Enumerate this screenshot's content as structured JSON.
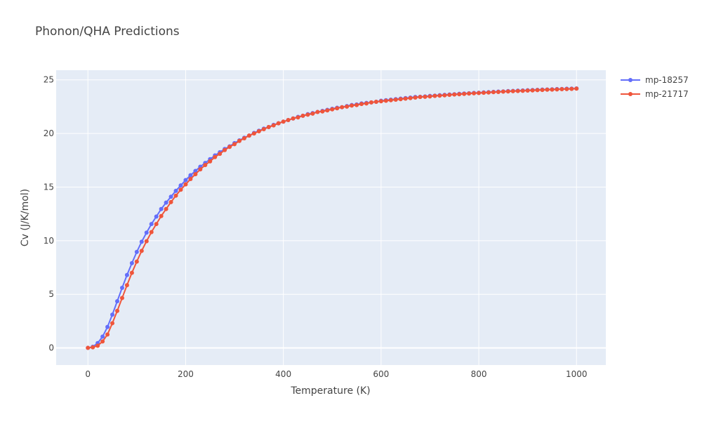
{
  "chart_data": {
    "type": "line",
    "title": "Phonon/QHA Predictions",
    "xlabel": "Temperature (K)",
    "ylabel": "Cv (J/K/mol)",
    "xlim": [
      -65,
      1060
    ],
    "ylim": [
      -1.6,
      25.9
    ],
    "xticks": [
      0,
      200,
      400,
      600,
      800,
      1000
    ],
    "yticks": [
      0,
      5,
      10,
      15,
      20,
      25
    ],
    "grid": true,
    "legend_position": "top-right-outside",
    "x": [
      0,
      10,
      20,
      30,
      40,
      50,
      60,
      70,
      80,
      90,
      100,
      110,
      120,
      130,
      140,
      150,
      160,
      170,
      180,
      190,
      200,
      210,
      220,
      230,
      240,
      250,
      260,
      270,
      280,
      290,
      300,
      310,
      320,
      330,
      340,
      350,
      360,
      370,
      380,
      390,
      400,
      410,
      420,
      430,
      440,
      450,
      460,
      470,
      480,
      490,
      500,
      510,
      520,
      530,
      540,
      550,
      560,
      570,
      580,
      590,
      600,
      610,
      620,
      630,
      640,
      650,
      660,
      670,
      680,
      690,
      700,
      710,
      720,
      730,
      740,
      750,
      760,
      770,
      780,
      790,
      800,
      810,
      820,
      830,
      840,
      850,
      860,
      870,
      880,
      890,
      900,
      910,
      920,
      930,
      940,
      950,
      960,
      970,
      980,
      990,
      1000
    ],
    "series": [
      {
        "name": "mp-18257",
        "color": "#636efa",
        "values": [
          0,
          0.1,
          0.45,
          1.05,
          1.95,
          3.1,
          4.35,
          5.6,
          6.8,
          7.9,
          8.95,
          9.9,
          10.75,
          11.55,
          12.25,
          12.95,
          13.55,
          14.1,
          14.65,
          15.15,
          15.65,
          16.1,
          16.5,
          16.9,
          17.25,
          17.6,
          17.95,
          18.25,
          18.55,
          18.8,
          19.1,
          19.35,
          19.6,
          19.8,
          20.05,
          20.25,
          20.45,
          20.6,
          20.8,
          20.95,
          21.1,
          21.25,
          21.4,
          21.55,
          21.65,
          21.8,
          21.9,
          22.0,
          22.1,
          22.2,
          22.3,
          22.4,
          22.45,
          22.55,
          22.65,
          22.7,
          22.8,
          22.85,
          22.9,
          22.95,
          23.05,
          23.1,
          23.15,
          23.2,
          23.25,
          23.3,
          23.35,
          23.4,
          23.42,
          23.45,
          23.5,
          23.53,
          23.57,
          23.6,
          23.63,
          23.66,
          23.7,
          23.72,
          23.75,
          23.78,
          23.8,
          23.83,
          23.85,
          23.88,
          23.9,
          23.92,
          23.95,
          23.97,
          23.99,
          24.01,
          24.03,
          24.05,
          24.07,
          24.09,
          24.1,
          24.12,
          24.14,
          24.15,
          24.17,
          24.18,
          24.2
        ]
      },
      {
        "name": "mp-21717",
        "color": "#ef553b",
        "values": [
          0,
          0.05,
          0.2,
          0.6,
          1.25,
          2.3,
          3.45,
          4.65,
          5.85,
          7.0,
          8.05,
          9.05,
          9.95,
          10.8,
          11.55,
          12.3,
          12.95,
          13.6,
          14.2,
          14.75,
          15.25,
          15.75,
          16.2,
          16.65,
          17.05,
          17.4,
          17.8,
          18.1,
          18.45,
          18.75,
          19.0,
          19.3,
          19.55,
          19.8,
          20.0,
          20.2,
          20.4,
          20.6,
          20.75,
          20.95,
          21.1,
          21.25,
          21.4,
          21.5,
          21.65,
          21.75,
          21.85,
          22.0,
          22.05,
          22.15,
          22.25,
          22.35,
          22.45,
          22.5,
          22.6,
          22.65,
          22.75,
          22.8,
          22.9,
          22.95,
          23.0,
          23.05,
          23.1,
          23.15,
          23.2,
          23.25,
          23.3,
          23.35,
          23.4,
          23.42,
          23.45,
          23.5,
          23.53,
          23.56,
          23.6,
          23.63,
          23.66,
          23.69,
          23.72,
          23.75,
          23.77,
          23.8,
          23.82,
          23.85,
          23.87,
          23.9,
          23.92,
          23.94,
          23.96,
          23.98,
          24.0,
          24.02,
          24.04,
          24.06,
          24.08,
          24.09,
          24.11,
          24.13,
          24.14,
          24.16,
          24.18
        ]
      }
    ]
  }
}
